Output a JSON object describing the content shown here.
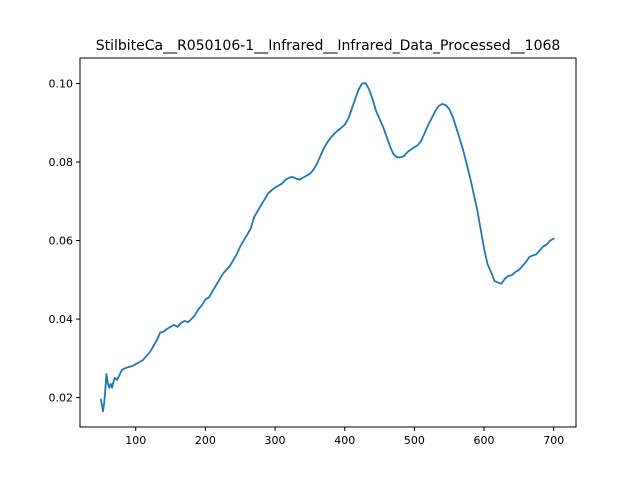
{
  "chart_data": {
    "type": "line",
    "title": "StilbiteCa__R050106-1__Infrared__Infrared_Data_Processed__1068",
    "xlabel": "",
    "ylabel": "",
    "xlim": [
      20,
      732
    ],
    "ylim": [
      0.0125,
      0.1065
    ],
    "x_ticks": [
      100,
      200,
      300,
      400,
      500,
      600,
      700
    ],
    "x_tick_labels": [
      "100",
      "200",
      "300",
      "400",
      "500",
      "600",
      "700"
    ],
    "y_ticks": [
      0.02,
      0.04,
      0.06,
      0.08,
      0.1
    ],
    "y_tick_labels": [
      "0.02",
      "0.04",
      "0.06",
      "0.08",
      "0.10"
    ],
    "grid": false,
    "colors": {
      "series": "#1f77b4"
    },
    "series": [
      {
        "x": [
          50,
          53,
          55,
          58,
          60,
          62,
          64,
          66,
          68,
          70,
          73,
          76,
          80,
          85,
          90,
          95,
          100,
          105,
          110,
          115,
          120,
          125,
          130,
          135,
          140,
          145,
          150,
          155,
          160,
          165,
          170,
          175,
          180,
          185,
          190,
          195,
          200,
          205,
          210,
          215,
          220,
          225,
          230,
          235,
          240,
          245,
          250,
          255,
          260,
          265,
          270,
          275,
          280,
          285,
          290,
          295,
          300,
          305,
          310,
          315,
          320,
          325,
          330,
          335,
          340,
          345,
          350,
          355,
          360,
          365,
          370,
          375,
          380,
          385,
          390,
          395,
          400,
          405,
          410,
          415,
          420,
          425,
          430,
          435,
          440,
          445,
          450,
          455,
          460,
          465,
          470,
          475,
          480,
          485,
          490,
          495,
          500,
          505,
          510,
          515,
          520,
          525,
          530,
          535,
          540,
          545,
          550,
          555,
          560,
          565,
          570,
          575,
          580,
          585,
          590,
          595,
          600,
          605,
          610,
          615,
          620,
          625,
          630,
          635,
          640,
          645,
          650,
          655,
          660,
          665,
          670,
          675,
          680,
          685,
          690,
          695,
          700
        ],
        "values": [
          0.0195,
          0.0165,
          0.019,
          0.026,
          0.0235,
          0.0225,
          0.0235,
          0.0225,
          0.024,
          0.025,
          0.0245,
          0.0255,
          0.027,
          0.0275,
          0.0278,
          0.028,
          0.0285,
          0.029,
          0.0295,
          0.0305,
          0.0315,
          0.033,
          0.0345,
          0.0365,
          0.0368,
          0.0375,
          0.038,
          0.0385,
          0.038,
          0.039,
          0.0395,
          0.0392,
          0.04,
          0.041,
          0.0425,
          0.0435,
          0.045,
          0.0455,
          0.047,
          0.0485,
          0.05,
          0.0515,
          0.0525,
          0.0535,
          0.055,
          0.0565,
          0.0585,
          0.06,
          0.0615,
          0.063,
          0.066,
          0.0675,
          0.069,
          0.0705,
          0.072,
          0.0728,
          0.0735,
          0.074,
          0.0745,
          0.0755,
          0.076,
          0.0762,
          0.0758,
          0.0755,
          0.076,
          0.0765,
          0.077,
          0.078,
          0.0795,
          0.0815,
          0.0835,
          0.085,
          0.0862,
          0.0872,
          0.088,
          0.0887,
          0.0895,
          0.091,
          0.0935,
          0.096,
          0.0985,
          0.1,
          0.1001,
          0.0985,
          0.096,
          0.093,
          0.091,
          0.089,
          0.0865,
          0.084,
          0.082,
          0.0812,
          0.0812,
          0.0815,
          0.0825,
          0.0832,
          0.0838,
          0.0843,
          0.0855,
          0.0875,
          0.0895,
          0.0912,
          0.093,
          0.0943,
          0.0948,
          0.0945,
          0.0935,
          0.0915,
          0.0888,
          0.086,
          0.083,
          0.0795,
          0.076,
          0.072,
          0.068,
          0.063,
          0.058,
          0.054,
          0.052,
          0.0497,
          0.0493,
          0.049,
          0.0503,
          0.051,
          0.0512,
          0.052,
          0.0525,
          0.0535,
          0.0545,
          0.0558,
          0.0562,
          0.0565,
          0.0575,
          0.0585,
          0.059,
          0.06,
          0.0605
        ]
      }
    ]
  }
}
